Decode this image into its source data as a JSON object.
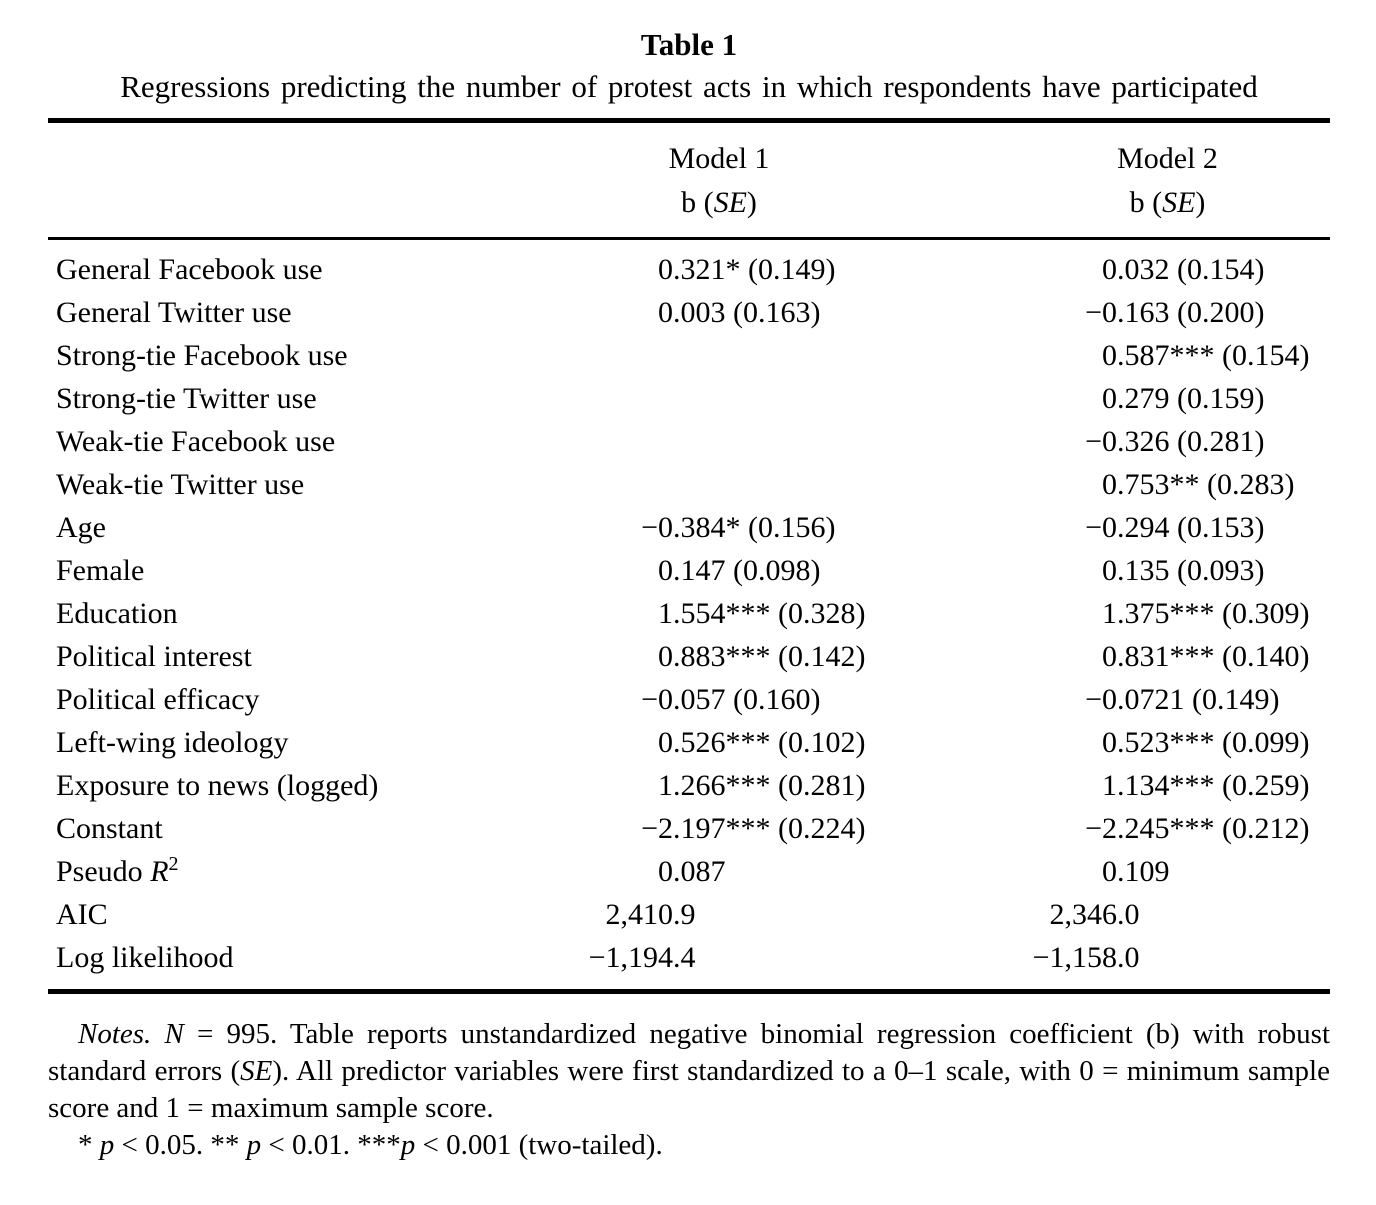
{
  "table": {
    "number": "Table 1",
    "caption": "Regressions predicting the number of protest acts in which respondents have participated",
    "columns": [
      {
        "name": "Model 1",
        "sub_prefix": "b (",
        "sub_italic": "SE",
        "sub_suffix": ")"
      },
      {
        "name": "Model 2",
        "sub_prefix": "b (",
        "sub_italic": "SE",
        "sub_suffix": ")"
      }
    ],
    "rows": [
      {
        "label": "General Facebook use",
        "m1": "0.321* (0.149)",
        "m2": "0.032 (0.154)"
      },
      {
        "label": "General Twitter use",
        "m1": "0.003 (0.163)",
        "m2": "−0.163 (0.200)"
      },
      {
        "label": "Strong-tie Facebook use",
        "m1": "",
        "m2": "0.587*** (0.154)"
      },
      {
        "label": "Strong-tie Twitter use",
        "m1": "",
        "m2": "0.279 (0.159)"
      },
      {
        "label": "Weak-tie Facebook use",
        "m1": "",
        "m2": "−0.326 (0.281)"
      },
      {
        "label": "Weak-tie Twitter use",
        "m1": "",
        "m2": "0.753** (0.283)"
      },
      {
        "label": "Age",
        "m1": "−0.384* (0.156)",
        "m2": "−0.294 (0.153)"
      },
      {
        "label": "Female",
        "m1": "0.147 (0.098)",
        "m2": "0.135 (0.093)"
      },
      {
        "label": "Education",
        "m1": "1.554*** (0.328)",
        "m2": "1.375*** (0.309)"
      },
      {
        "label": "Political interest",
        "m1": "0.883*** (0.142)",
        "m2": "0.831*** (0.140)"
      },
      {
        "label": "Political efficacy",
        "m1": "−0.057 (0.160)",
        "m2": "−0.0721 (0.149)"
      },
      {
        "label": "Left-wing ideology",
        "m1": "0.526*** (0.102)",
        "m2": "0.523*** (0.099)"
      },
      {
        "label": "Exposure to news (logged)",
        "m1": "1.266*** (0.281)",
        "m2": "1.134*** (0.259)"
      },
      {
        "label": "Constant",
        "m1": "−2.197*** (0.224)",
        "m2": "−2.245*** (0.212)"
      },
      {
        "label_prefix": "Pseudo ",
        "label_var": "R",
        "label_sup": "2",
        "m1": "0.087",
        "m2": "0.109"
      },
      {
        "label": "AIC",
        "m1": "2,410.9",
        "m2": "2,346.0"
      },
      {
        "label": "Log likelihood",
        "m1": "−1,194.4",
        "m2": "−1,158.0"
      }
    ]
  },
  "notes": {
    "label": "Notes.",
    "sep": " ",
    "n_var": "N",
    "text_a": " = 995. Table reports unstandardized negative binomial regression coefficient (b) with robust standard errors (",
    "se_var": "SE",
    "text_b": "). All predictor variables were first standardized to a 0–1 scale, with 0 = minimum sample score and 1 = maximum sample score.",
    "sig_s1": "* ",
    "sig_p1": "p",
    "sig_t1": " < 0.05. ** ",
    "sig_p2": "p",
    "sig_t2": " < 0.01. ***",
    "sig_p3": "p",
    "sig_t3": " < 0.001 (two-tailed)."
  }
}
